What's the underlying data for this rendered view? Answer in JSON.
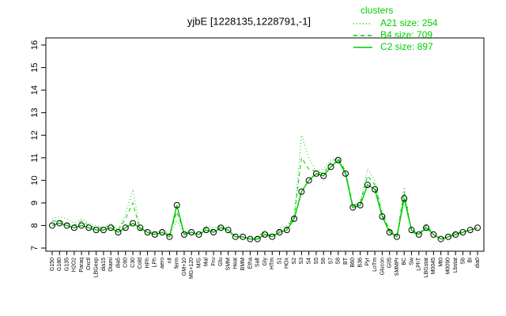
{
  "chart_data": {
    "type": "line",
    "title": "yjbE [1228135,1228791,-1]",
    "legend_title": "clusters",
    "legend": "topright",
    "ylim": [
      7,
      16
    ],
    "yticks": [
      7,
      8,
      9,
      10,
      11,
      12,
      13,
      14,
      15,
      16
    ],
    "categories": [
      "G150",
      "G180",
      "G135",
      "H2O2",
      "Paraq",
      "Oxctl",
      "LBGexp",
      "dia15",
      "Diami",
      "dia5",
      "C60",
      "C30",
      "Cold",
      "HPh",
      "LPh",
      "aero",
      "nit",
      "ferm",
      "GM+10",
      "MG+120",
      "M/G",
      "Mal",
      "Fru",
      "Glu",
      "SMM",
      "Heat",
      "BMM",
      "Etha",
      "Salt",
      "Gly",
      "HTm",
      "S1",
      "HOx",
      "S2",
      "S3",
      "S4",
      "S5",
      "S6",
      "S7",
      "S8",
      "BT",
      "B60",
      "B36",
      "Pyr",
      "LoTm",
      "Glucon",
      "G05",
      "SMMPr",
      "BC",
      "Sw",
      "LPhT",
      "LBGstat",
      "M0045",
      "Mt0",
      "M0090",
      "Lbstat",
      "Sb",
      "BI",
      "dia0"
    ],
    "series": [
      {
        "name": "A21 size: 254",
        "color": "#00cc00",
        "style": "dotted",
        "values": [
          8.3,
          8.4,
          8.3,
          8.1,
          8.3,
          8.1,
          8.0,
          7.9,
          8.1,
          7.8,
          8.5,
          9.6,
          7.8,
          7.7,
          7.7,
          7.8,
          7.6,
          8.2,
          7.7,
          7.6,
          7.6,
          8.0,
          7.9,
          8.0,
          7.7,
          7.5,
          7.5,
          7.4,
          7.5,
          7.8,
          7.5,
          7.9,
          8.0,
          8.4,
          12.0,
          11.0,
          10.4,
          10.5,
          10.9,
          11.0,
          10.3,
          8.7,
          9.0,
          10.5,
          10.0,
          8.6,
          7.8,
          7.5,
          9.7,
          7.7,
          7.6,
          8.1,
          7.6,
          7.4,
          7.5,
          7.7,
          7.7,
          7.8,
          7.9
        ]
      },
      {
        "name": "B4 size: 709",
        "color": "#00cc00",
        "style": "dashed",
        "values": [
          8.2,
          8.2,
          8.1,
          8.0,
          8.2,
          8.0,
          7.9,
          7.9,
          8.0,
          7.8,
          8.3,
          9.0,
          7.8,
          7.7,
          7.7,
          7.7,
          7.6,
          8.6,
          7.7,
          7.7,
          7.6,
          7.9,
          7.8,
          8.0,
          7.8,
          7.5,
          7.5,
          7.4,
          7.5,
          7.7,
          7.5,
          7.8,
          7.9,
          8.4,
          11.0,
          10.5,
          10.4,
          10.3,
          10.8,
          11.0,
          10.4,
          8.9,
          9.0,
          10.2,
          9.8,
          8.5,
          7.8,
          7.5,
          9.5,
          7.7,
          7.6,
          8.0,
          7.6,
          7.4,
          7.5,
          7.7,
          7.7,
          7.8,
          7.9
        ]
      },
      {
        "name": "C2 size: 897",
        "color": "#00cc00",
        "style": "solid",
        "values": [
          8.0,
          8.1,
          8.0,
          7.9,
          8.0,
          7.9,
          7.8,
          7.8,
          7.9,
          7.7,
          7.9,
          8.1,
          7.9,
          7.7,
          7.6,
          7.7,
          7.5,
          8.9,
          7.6,
          7.7,
          7.6,
          7.8,
          7.7,
          7.9,
          7.8,
          7.5,
          7.5,
          7.4,
          7.4,
          7.6,
          7.5,
          7.7,
          7.8,
          8.3,
          9.5,
          10.0,
          10.3,
          10.2,
          10.6,
          10.9,
          10.3,
          8.8,
          8.9,
          9.8,
          9.6,
          8.4,
          7.7,
          7.5,
          9.2,
          7.8,
          7.6,
          7.9,
          7.6,
          7.4,
          7.5,
          7.6,
          7.7,
          7.8,
          7.9
        ]
      }
    ]
  }
}
